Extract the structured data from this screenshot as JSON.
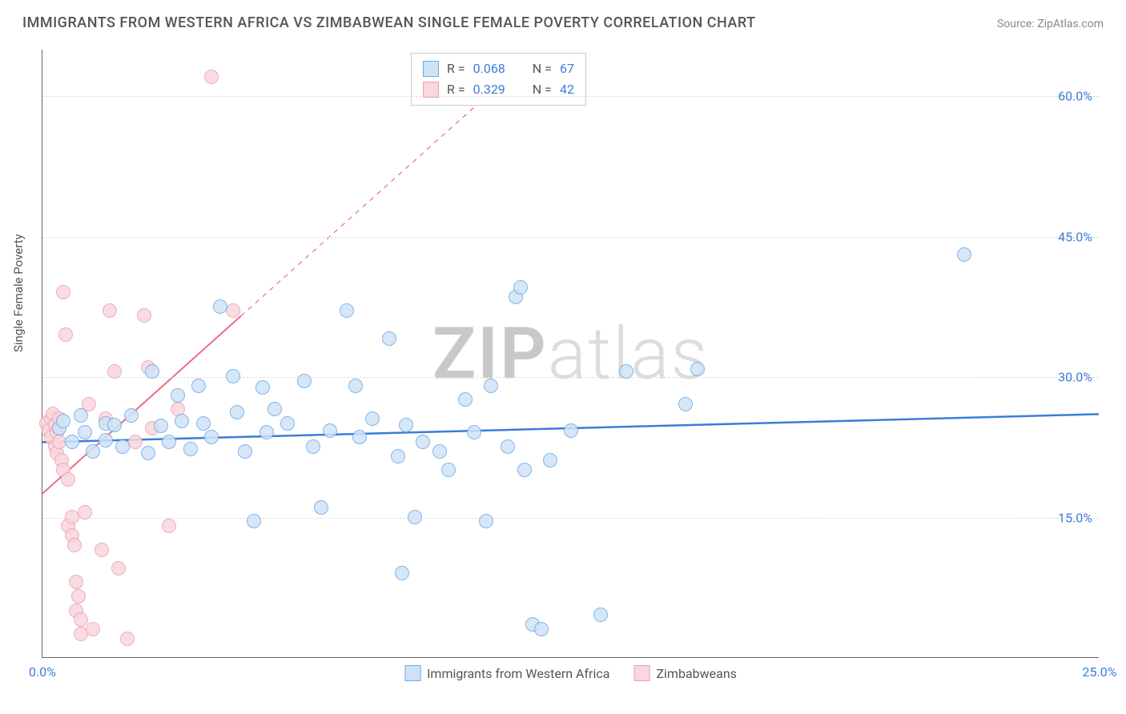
{
  "header": {
    "title": "IMMIGRANTS FROM WESTERN AFRICA VS ZIMBABWEAN SINGLE FEMALE POVERTY CORRELATION CHART",
    "source_prefix": "Source: ",
    "source_name": "ZipAtlas.com"
  },
  "watermark": {
    "text_bold": "ZIP",
    "text_light": "atlas",
    "color_bold": "#c8c8c8",
    "color_light": "#dcdcdc"
  },
  "chart": {
    "type": "scatter",
    "ylabel": "Single Female Poverty",
    "xlim": [
      0,
      25
    ],
    "ylim": [
      0,
      65
    ],
    "xticks": [
      {
        "value": 0,
        "label": "0.0%"
      },
      {
        "value": 25,
        "label": "25.0%"
      }
    ],
    "yticks": [
      {
        "value": 15,
        "label": "15.0%"
      },
      {
        "value": 30,
        "label": "30.0%"
      },
      {
        "value": 45,
        "label": "45.0%"
      },
      {
        "value": 60,
        "label": "60.0%"
      }
    ],
    "axis_tick_color": "#3b7dd8",
    "grid_color": "#dddddd",
    "series": [
      {
        "name": "Immigrants from Western Africa",
        "fill": "#cfe3f7",
        "stroke": "#6fa8e6",
        "marker_radius": 9,
        "R": "0.068",
        "N": "67",
        "trend": {
          "x1": 0,
          "y1": 23.0,
          "x2": 25,
          "y2": 26.0,
          "solid_until_x": 25,
          "color": "#3b7dd8",
          "width": 2.5
        },
        "points": [
          [
            0.4,
            24.5
          ],
          [
            0.5,
            25.2
          ],
          [
            0.7,
            23.0
          ],
          [
            0.9,
            25.8
          ],
          [
            1.0,
            24.0
          ],
          [
            1.2,
            22.0
          ],
          [
            1.5,
            25.0
          ],
          [
            1.5,
            23.2
          ],
          [
            1.7,
            24.8
          ],
          [
            1.9,
            22.5
          ],
          [
            2.1,
            25.8
          ],
          [
            2.5,
            21.8
          ],
          [
            2.6,
            30.5
          ],
          [
            2.8,
            24.7
          ],
          [
            3.0,
            23.0
          ],
          [
            3.2,
            28.0
          ],
          [
            3.3,
            25.2
          ],
          [
            3.5,
            22.2
          ],
          [
            3.7,
            29.0
          ],
          [
            3.8,
            25.0
          ],
          [
            4.0,
            23.5
          ],
          [
            4.2,
            37.5
          ],
          [
            4.5,
            30.0
          ],
          [
            4.6,
            26.2
          ],
          [
            4.8,
            22.0
          ],
          [
            5.0,
            14.5
          ],
          [
            5.2,
            28.8
          ],
          [
            5.3,
            24.0
          ],
          [
            5.5,
            26.5
          ],
          [
            5.8,
            25.0
          ],
          [
            6.2,
            29.5
          ],
          [
            6.4,
            22.5
          ],
          [
            6.6,
            16.0
          ],
          [
            6.8,
            24.2
          ],
          [
            7.2,
            37.0
          ],
          [
            7.4,
            29.0
          ],
          [
            7.5,
            23.5
          ],
          [
            7.8,
            25.5
          ],
          [
            8.2,
            34.0
          ],
          [
            8.4,
            21.5
          ],
          [
            8.5,
            9.0
          ],
          [
            8.6,
            24.8
          ],
          [
            8.8,
            15.0
          ],
          [
            9.0,
            23.0
          ],
          [
            9.4,
            22.0
          ],
          [
            9.6,
            20.0
          ],
          [
            10.0,
            27.5
          ],
          [
            10.2,
            24.0
          ],
          [
            10.5,
            14.5
          ],
          [
            10.6,
            29.0
          ],
          [
            11.0,
            22.5
          ],
          [
            11.2,
            38.5
          ],
          [
            11.3,
            39.5
          ],
          [
            11.4,
            20.0
          ],
          [
            11.6,
            3.5
          ],
          [
            11.8,
            3.0
          ],
          [
            12.0,
            21.0
          ],
          [
            12.5,
            24.2
          ],
          [
            13.2,
            4.5
          ],
          [
            13.8,
            30.5
          ],
          [
            15.2,
            27.0
          ],
          [
            15.5,
            30.8
          ],
          [
            21.8,
            43.0
          ]
        ]
      },
      {
        "name": "Zimbabweans",
        "fill": "#f9d7dd",
        "stroke": "#ec9fb0",
        "marker_radius": 9,
        "R": "0.329",
        "N": "42",
        "trend": {
          "x1": 0,
          "y1": 17.5,
          "x2": 11,
          "y2": 62.0,
          "solid_until_x": 4.7,
          "color": "#ec6a88",
          "width": 2
        },
        "points": [
          [
            0.1,
            25.0
          ],
          [
            0.15,
            24.2
          ],
          [
            0.2,
            25.5
          ],
          [
            0.2,
            23.5
          ],
          [
            0.25,
            26.0
          ],
          [
            0.3,
            24.8
          ],
          [
            0.3,
            22.5
          ],
          [
            0.35,
            24.0
          ],
          [
            0.35,
            21.8
          ],
          [
            0.4,
            23.0
          ],
          [
            0.4,
            25.5
          ],
          [
            0.45,
            21.0
          ],
          [
            0.5,
            20.0
          ],
          [
            0.5,
            39.0
          ],
          [
            0.55,
            34.5
          ],
          [
            0.6,
            19.0
          ],
          [
            0.6,
            14.0
          ],
          [
            0.7,
            15.0
          ],
          [
            0.7,
            13.0
          ],
          [
            0.75,
            12.0
          ],
          [
            0.8,
            5.0
          ],
          [
            0.8,
            8.0
          ],
          [
            0.85,
            6.5
          ],
          [
            0.9,
            2.5
          ],
          [
            0.9,
            4.0
          ],
          [
            1.0,
            15.5
          ],
          [
            1.1,
            27.0
          ],
          [
            1.2,
            3.0
          ],
          [
            1.4,
            11.5
          ],
          [
            1.5,
            25.5
          ],
          [
            1.6,
            37.0
          ],
          [
            1.7,
            30.5
          ],
          [
            1.8,
            9.5
          ],
          [
            2.0,
            2.0
          ],
          [
            2.2,
            23.0
          ],
          [
            2.4,
            36.5
          ],
          [
            2.5,
            31.0
          ],
          [
            2.6,
            24.5
          ],
          [
            3.0,
            14.0
          ],
          [
            3.2,
            26.5
          ],
          [
            4.0,
            62.0
          ],
          [
            4.5,
            37.0
          ]
        ]
      }
    ],
    "stats_legend": {
      "r_label": "R =",
      "n_label": "N =",
      "value_color": "#3b7dd8"
    }
  }
}
